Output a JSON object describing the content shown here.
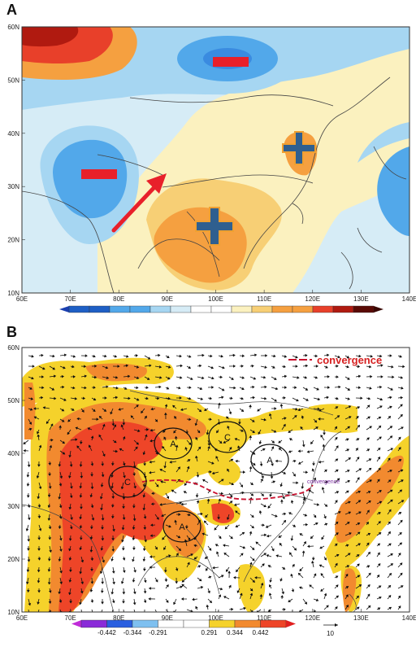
{
  "panelA": {
    "letter": "A",
    "y_ticks": [
      "60N",
      "50N",
      "40N",
      "30N",
      "20N",
      "10N"
    ],
    "x_ticks": [
      "60E",
      "70E",
      "80E",
      "90E",
      "100E",
      "110E",
      "120E",
      "130E",
      "140E"
    ],
    "colors": {
      "dark_red": "#b01a10",
      "red": "#e8402a",
      "orange": "#f5a040",
      "light_orange": "#f7cf75",
      "pale_yellow": "#fbf1bf",
      "pale_blue": "#d6ecf6",
      "light_blue": "#a6d6f2",
      "blue": "#52a8ea",
      "dark_blue": "#1e5fc5"
    }
  },
  "panelB": {
    "letter": "B",
    "y_ticks": [
      "60N",
      "50N",
      "40N",
      "30N",
      "20N",
      "10N"
    ],
    "x_ticks": [
      "60E",
      "70E",
      "80E",
      "90E",
      "100E",
      "110E",
      "120E",
      "130E",
      "140E"
    ],
    "legend_label": "convergence",
    "inline_label": "convergence",
    "circles": [
      {
        "label": "A",
        "cx": 213,
        "cy": 545
      },
      {
        "label": "C",
        "cx": 280,
        "cy": 537
      },
      {
        "label": "A",
        "cx": 332,
        "cy": 565
      },
      {
        "label": "C",
        "cx": 157,
        "cy": 592
      },
      {
        "label": "A",
        "cx": 224,
        "cy": 647
      }
    ],
    "colorbar_labels": [
      "-0.442",
      "-0.344",
      "-0.291",
      "0.291",
      "0.344",
      "0.442"
    ],
    "ref_vector": "10",
    "colors": {
      "yellow": "#f5d22b",
      "orange": "#f28a2f",
      "red": "#ee4528"
    }
  }
}
